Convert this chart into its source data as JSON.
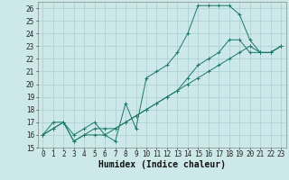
{
  "xlabel": "Humidex (Indice chaleur)",
  "xlim": [
    -0.5,
    23.5
  ],
  "ylim": [
    15,
    26.5
  ],
  "xticks": [
    0,
    1,
    2,
    3,
    4,
    5,
    6,
    7,
    8,
    9,
    10,
    11,
    12,
    13,
    14,
    15,
    16,
    17,
    18,
    19,
    20,
    21,
    22,
    23
  ],
  "yticks": [
    15,
    16,
    17,
    18,
    19,
    20,
    21,
    22,
    23,
    24,
    25,
    26
  ],
  "bg_color": "#cde8e8",
  "line_color": "#1a7a6a",
  "grid_color": "#aacece",
  "line1_x": [
    0,
    1,
    2,
    3,
    4,
    5,
    6,
    7,
    8,
    9,
    10,
    11,
    12,
    13,
    14,
    15,
    16,
    17,
    18,
    19,
    20,
    21,
    22,
    23
  ],
  "line1_y": [
    16,
    17,
    17,
    16,
    16.5,
    17,
    16,
    15.5,
    18.5,
    16.5,
    20.5,
    21,
    21.5,
    22.5,
    24,
    26.2,
    26.2,
    26.2,
    26.2,
    25.5,
    23.5,
    22.5,
    22.5,
    23
  ],
  "line2_x": [
    0,
    1,
    2,
    3,
    4,
    5,
    6,
    7,
    8,
    9,
    10,
    11,
    12,
    13,
    14,
    15,
    16,
    17,
    18,
    19,
    20,
    21,
    22,
    23
  ],
  "line2_y": [
    16,
    16.5,
    17,
    15.5,
    16,
    16,
    16,
    16.5,
    17,
    17.5,
    18,
    18.5,
    19,
    19.5,
    20,
    20.5,
    21,
    21.5,
    22,
    22.5,
    23,
    22.5,
    22.5,
    23
  ],
  "line3_x": [
    0,
    1,
    2,
    3,
    4,
    5,
    6,
    7,
    8,
    9,
    10,
    11,
    12,
    13,
    14,
    15,
    16,
    17,
    18,
    19,
    20,
    21,
    22,
    23
  ],
  "line3_y": [
    16,
    16.5,
    17,
    15.5,
    16,
    16.5,
    16.5,
    16.5,
    17,
    17.5,
    18,
    18.5,
    19,
    19.5,
    20.5,
    21.5,
    22,
    22.5,
    23.5,
    23.5,
    22.5,
    22.5,
    22.5,
    23
  ],
  "font_family": "monospace",
  "tick_fontsize": 5.5,
  "label_fontsize": 7
}
